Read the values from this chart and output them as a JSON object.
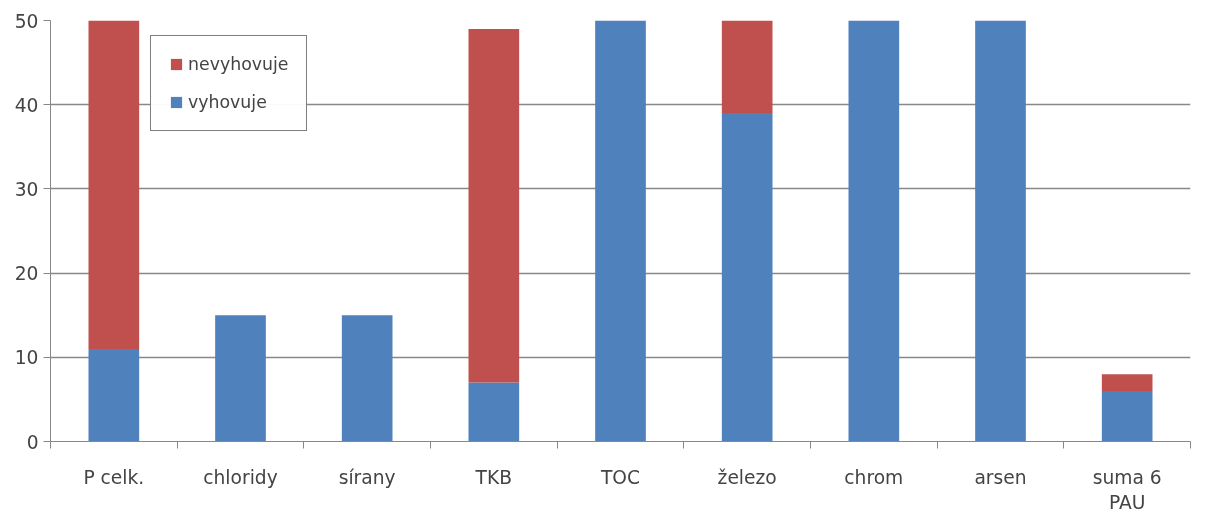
{
  "chart_data": {
    "type": "bar",
    "stacked": true,
    "categories": [
      "P celk.",
      "chloridy",
      "sírany",
      "TKB",
      "TOC",
      "železo",
      "chrom",
      "arsen",
      "suma 6 PAU"
    ],
    "series": [
      {
        "name": "vyhovuje",
        "color": "#4f81bd",
        "values": [
          11,
          15,
          15,
          7,
          50,
          39,
          50,
          50,
          6
        ]
      },
      {
        "name": "nevyhovuje",
        "color": "#c0504d",
        "values": [
          39,
          0,
          0,
          42,
          0,
          11,
          0,
          0,
          2
        ]
      }
    ],
    "ylim": [
      0,
      50
    ],
    "yticks": [
      0,
      10,
      20,
      30,
      40,
      50
    ],
    "grid": "y",
    "legend": "top left"
  }
}
